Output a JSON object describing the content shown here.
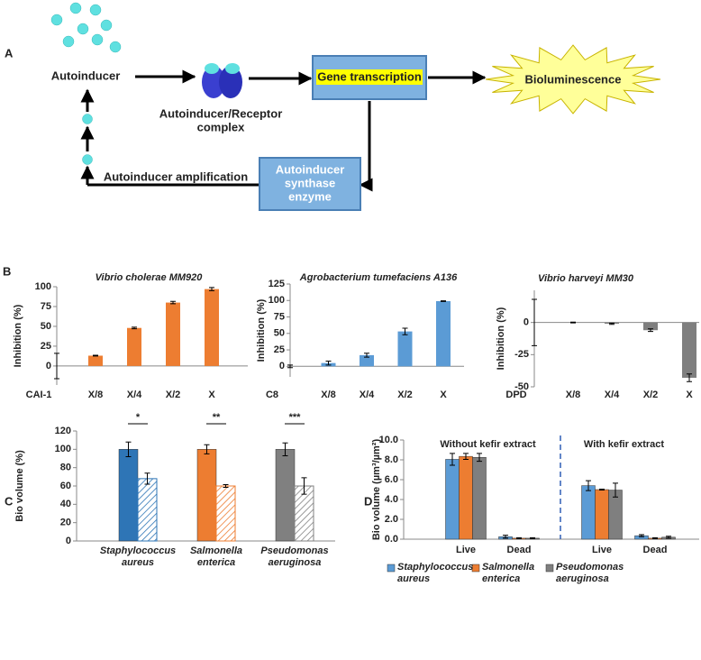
{
  "panel_labels": [
    "A",
    "B",
    "C",
    "D"
  ],
  "diagram": {
    "autoinducer": "Autoinducer",
    "complex_lines": [
      "Autoinducer/Receptor",
      "complex"
    ],
    "gene": "Gene transcription",
    "output": "Bioluminescence",
    "synthase_lines": [
      "Autoinducer",
      "synthase",
      "enzyme"
    ],
    "amplification": "Autoinducer amplification"
  },
  "chart_data": [
    {
      "type": "bar",
      "title": "Vibrio cholerae MM920",
      "ylabel": "Inhibition (%)",
      "categories": [
        "CAI-1",
        "X/8",
        "X/4",
        "X/2",
        "X"
      ],
      "values": [
        0,
        13,
        48,
        80,
        97
      ],
      "errors": [
        16,
        0.5,
        1,
        1.5,
        2
      ],
      "color": "#ed7d31",
      "ylim": [
        -24,
        100
      ],
      "yticks": [
        0,
        25,
        50,
        75,
        100
      ]
    },
    {
      "type": "bar",
      "title": "Agrobacterium tumefaciens A136",
      "ylabel": "Inhibition (%)",
      "categories": [
        "C8",
        "X/8",
        "X/4",
        "X/2",
        "X"
      ],
      "values": [
        0,
        5,
        17,
        53,
        99
      ],
      "errors": [
        2,
        3,
        3,
        5,
        0.5
      ],
      "color": "#5b9bd5",
      "ylim": [
        -16,
        125
      ],
      "yticks": [
        0,
        25,
        50,
        75,
        100,
        125
      ]
    },
    {
      "type": "bar",
      "title": "Vibrio harveyi MM30",
      "ylabel": "Inhibition (%)",
      "categories": [
        "DPD",
        "X/8",
        "X/4",
        "X/2",
        "X"
      ],
      "values": [
        0,
        0,
        -1,
        -6,
        -43
      ],
      "errors": [
        18,
        0.3,
        0.5,
        1,
        3
      ],
      "color": "#7f7f7f",
      "ylim": [
        -50,
        25
      ],
      "yticks": [
        -50,
        -25,
        0
      ]
    },
    {
      "type": "bar",
      "ylabel": "Bio volume (%)",
      "categories": [
        "Staphylococcus aureus",
        "Salmonella enterica",
        "Pseudomonas aeruginosa"
      ],
      "colors": [
        "#2e75b6",
        "#ed7d31",
        "#808080"
      ],
      "series": [
        {
          "values": [
            100,
            100,
            100
          ],
          "errors": [
            8,
            5,
            7
          ]
        },
        {
          "values": [
            68,
            60,
            60
          ],
          "errors": [
            6,
            1.5,
            9
          ],
          "hatch": true
        }
      ],
      "annotations": [
        "*",
        "**",
        "***"
      ],
      "ylim": [
        0,
        120
      ],
      "yticks": [
        0,
        20,
        40,
        60,
        80,
        100,
        120
      ]
    },
    {
      "type": "bar",
      "ylabel": "Bio volume (µm³/µm²)",
      "categories": [
        "Live",
        "Dead",
        "Live",
        "Dead"
      ],
      "group_labels": [
        "Without kefir extract",
        "With kefir extract"
      ],
      "series": [
        {
          "name": "Staphylococcus aureus",
          "color": "#5b9bd5",
          "values": [
            8.05,
            0.25,
            5.4,
            0.35
          ],
          "errors": [
            0.6,
            0.15,
            0.5,
            0.1
          ]
        },
        {
          "name": "Salmonella enterica",
          "color": "#ed7d31",
          "values": [
            8.35,
            0.1,
            5.0,
            0.1
          ],
          "errors": [
            0.3,
            0.05,
            0.05,
            0.05
          ]
        },
        {
          "name": "Pseudomonas aeruginosa",
          "color": "#7f7f7f",
          "values": [
            8.25,
            0.1,
            4.95,
            0.2
          ],
          "errors": [
            0.4,
            0.05,
            0.7,
            0.1
          ]
        }
      ],
      "ylim": [
        0,
        10
      ],
      "yticks": [
        {
          "value": 0,
          "label": "0.0"
        },
        {
          "value": 2,
          "label": "2.0"
        },
        {
          "value": 4,
          "label": "4.0"
        },
        {
          "value": 6,
          "label": "6.0"
        },
        {
          "value": 8,
          "label": "8.0"
        },
        {
          "value": 10,
          "label": "10.0"
        }
      ]
    }
  ]
}
